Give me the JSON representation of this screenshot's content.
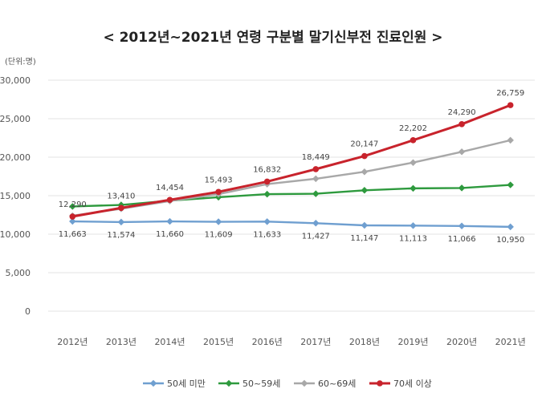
{
  "chart_data": {
    "type": "line",
    "title": "< 2012년~2021년 연령 구분별 말기신부전 진료인원 >",
    "unit_label": "(단위:명)",
    "categories": [
      "2012년",
      "2013년",
      "2014년",
      "2015년",
      "2016년",
      "2017년",
      "2018년",
      "2019년",
      "2020년",
      "2021년"
    ],
    "ylim": [
      0,
      30000
    ],
    "yticks": [
      0,
      5000,
      10000,
      15000,
      20000,
      25000,
      30000
    ],
    "ytick_labels": [
      "0",
      "5,000",
      "10,000",
      "15,000",
      "20,000",
      "25,000",
      "30,000"
    ],
    "grid": true,
    "legend_position": "bottom",
    "series": [
      {
        "name": "50세 미만",
        "color": "#6f9fd0",
        "values": [
          11663,
          11574,
          11660,
          11609,
          11633,
          11427,
          11147,
          11113,
          11066,
          10950
        ],
        "labels": [
          "11,663",
          "11,574",
          "11,660",
          "11,609",
          "11,633",
          "11,427",
          "11,147",
          "11,113",
          "11,066",
          "10,950"
        ],
        "label_position": "below"
      },
      {
        "name": "50~59세",
        "color": "#2e9a3e",
        "values": [
          13600,
          13800,
          14350,
          14800,
          15200,
          15250,
          15700,
          15950,
          16000,
          16400
        ],
        "labels": [],
        "label_position": "none"
      },
      {
        "name": "60~69세",
        "color": "#a8a8a8",
        "values": [
          12400,
          13300,
          14300,
          15200,
          16500,
          17200,
          18100,
          19300,
          20700,
          22200
        ],
        "labels": [],
        "label_position": "none"
      },
      {
        "name": "70세 이상",
        "color": "#c8232c",
        "values": [
          12290,
          13410,
          14454,
          15493,
          16832,
          18449,
          20147,
          22202,
          24290,
          26759
        ],
        "labels": [
          "12,290",
          "13,410",
          "14,454",
          "15,493",
          "16,832",
          "18,449",
          "20,147",
          "22,202",
          "24,290",
          "26,759"
        ],
        "label_position": "above"
      }
    ]
  }
}
